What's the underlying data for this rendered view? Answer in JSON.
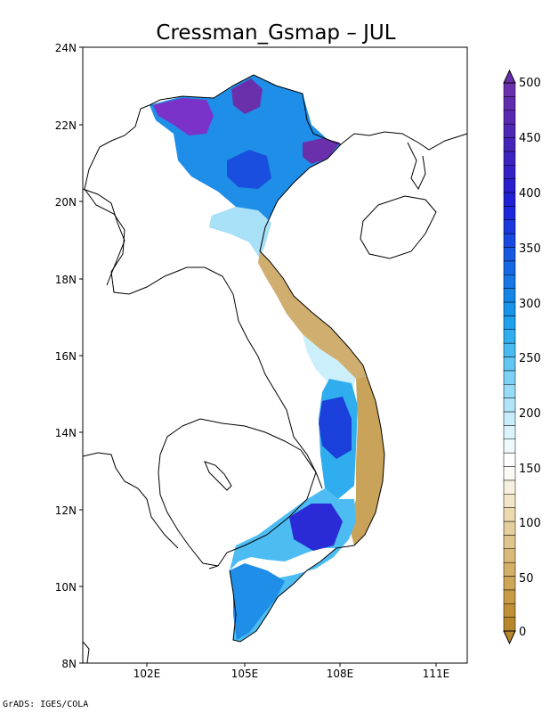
{
  "title": "Cressman_Gsmap – JUL",
  "credit": "GrADS: IGES/COLA",
  "map": {
    "lat_range": [
      8,
      24
    ],
    "lon_range": [
      99.8,
      111.8
    ],
    "lat_ticks": [
      "24N",
      "22N",
      "20N",
      "18N",
      "16N",
      "14N",
      "12N",
      "10N",
      "8N"
    ],
    "lon_ticks": [
      "102E",
      "105E",
      "108E",
      "111E"
    ]
  },
  "colorbar": {
    "labels": [
      "500",
      "450",
      "400",
      "350",
      "300",
      "250",
      "200",
      "150",
      "100",
      "50",
      "0"
    ],
    "min": 0,
    "max": 500,
    "step": 12.5,
    "colors_low_to_high": [
      "#b8862b",
      "#bf9038",
      "#c69a47",
      "#cda657",
      "#d3b068",
      "#d9ba79",
      "#dfc58b",
      "#e5cf9d",
      "#ebdab0",
      "#f1e6c8",
      "#f7f0e0",
      "#fdfaf4",
      "#ffffff",
      "#eef9fd",
      "#dcf3fb",
      "#c7ecfa",
      "#b0e4f8",
      "#97dbf7",
      "#7dd1f5",
      "#62c6f3",
      "#48bbf1",
      "#30aeef",
      "#1ea1ed",
      "#1693eb",
      "#1485e8",
      "#1576e6",
      "#1667e4",
      "#1758e2",
      "#1848e0",
      "#1a38dd",
      "#1c28d9",
      "#2220d3",
      "#2a1ecc",
      "#3320c6",
      "#3c22c0",
      "#4524ba",
      "#4e27b6",
      "#5729b2",
      "#602cae",
      "#6a30ab"
    ]
  },
  "chart_data": {
    "type": "heatmap",
    "title": "Cressman_Gsmap – JUL",
    "units_label": "",
    "colorbar_range": [
      0,
      500
    ],
    "regions": [
      {
        "area": "far northwest highlands (~22.5N, 103E)",
        "value": 480
      },
      {
        "area": "northeast border (~22.5N, 105.5E)",
        "value": 460
      },
      {
        "area": "Quang Ninh coast (~21.3N, 107.5E)",
        "value": 470
      },
      {
        "area": "Red River delta / north (~20.8N, 105.5E)",
        "value": 360
      },
      {
        "area": "north-central (~19.3N, 105.3E)",
        "value": 160
      },
      {
        "area": "central coast (~17N, 107E)",
        "value": 60
      },
      {
        "area": "central highlands (~14N, 108.2E)",
        "value": 360
      },
      {
        "area": "south-central coast (~13N, 109.2E)",
        "value": 40
      },
      {
        "area": "southeast (~11.8N, 107.3E)",
        "value": 400
      },
      {
        "area": "Mekong delta (~9.7N, 105.2E)",
        "value": 320
      }
    ]
  }
}
